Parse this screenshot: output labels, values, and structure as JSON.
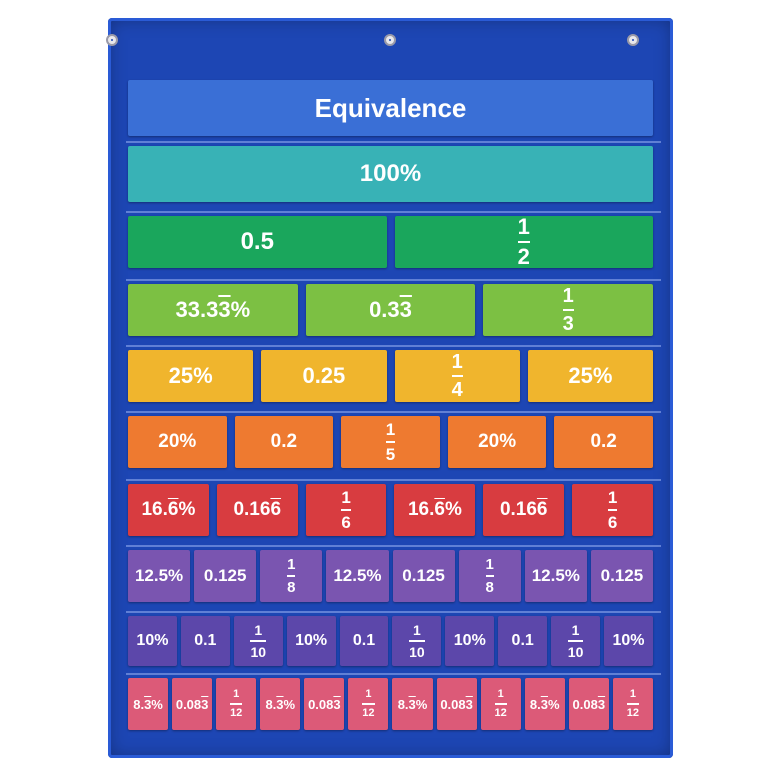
{
  "colors": {
    "background": "#1d46b4",
    "row_colors": [
      "#3a6fd6",
      "#38b2b6",
      "#1aa65c",
      "#7cc043",
      "#f0b52d",
      "#ee7a30",
      "#d83c40",
      "#7a55b0",
      "#5c47aa",
      "#dc5a78"
    ]
  },
  "chart": {
    "title": "Equivalence",
    "rows": [
      {
        "color": "#38b2b6",
        "cards": [
          {
            "kind": "text",
            "text": "100%"
          }
        ]
      },
      {
        "color": "#1aa65c",
        "cards": [
          {
            "kind": "text",
            "text": "0.5"
          },
          {
            "kind": "frac",
            "num": "1",
            "den": "2"
          }
        ]
      },
      {
        "color": "#7cc043",
        "cards": [
          {
            "kind": "text",
            "text": "33.3",
            "over": "3",
            "suffix": "%"
          },
          {
            "kind": "text",
            "text": "0.3",
            "over": "3",
            "suffix": ""
          },
          {
            "kind": "frac",
            "num": "1",
            "den": "3"
          }
        ]
      },
      {
        "color": "#f0b52d",
        "cards": [
          {
            "kind": "text",
            "text": "25%"
          },
          {
            "kind": "text",
            "text": "0.25"
          },
          {
            "kind": "frac",
            "num": "1",
            "den": "4"
          },
          {
            "kind": "text",
            "text": "25%"
          }
        ]
      },
      {
        "color": "#ee7a30",
        "cards": [
          {
            "kind": "text",
            "text": "20%"
          },
          {
            "kind": "text",
            "text": "0.2"
          },
          {
            "kind": "frac",
            "num": "1",
            "den": "5"
          },
          {
            "kind": "text",
            "text": "20%"
          },
          {
            "kind": "text",
            "text": "0.2"
          }
        ]
      },
      {
        "color": "#d83c40",
        "cards": [
          {
            "kind": "text",
            "text": "16.",
            "over": "6",
            "suffix": "%"
          },
          {
            "kind": "text",
            "text": "0.16",
            "over": "6",
            "suffix": ""
          },
          {
            "kind": "frac",
            "num": "1",
            "den": "6"
          },
          {
            "kind": "text",
            "text": "16.",
            "over": "6",
            "suffix": "%"
          },
          {
            "kind": "text",
            "text": "0.16",
            "over": "6",
            "suffix": ""
          },
          {
            "kind": "frac",
            "num": "1",
            "den": "6"
          }
        ]
      },
      {
        "color": "#7a55b0",
        "cards": [
          {
            "kind": "text",
            "text": "12.5%"
          },
          {
            "kind": "text",
            "text": "0.125"
          },
          {
            "kind": "frac",
            "num": "1",
            "den": "8"
          },
          {
            "kind": "text",
            "text": "12.5%"
          },
          {
            "kind": "text",
            "text": "0.125"
          },
          {
            "kind": "frac",
            "num": "1",
            "den": "8"
          },
          {
            "kind": "text",
            "text": "12.5%"
          },
          {
            "kind": "text",
            "text": "0.125"
          }
        ]
      },
      {
        "color": "#5c47aa",
        "cards": [
          {
            "kind": "text",
            "text": "10%"
          },
          {
            "kind": "text",
            "text": "0.1"
          },
          {
            "kind": "frac",
            "num": "1",
            "den": "10"
          },
          {
            "kind": "text",
            "text": "10%"
          },
          {
            "kind": "text",
            "text": "0.1"
          },
          {
            "kind": "frac",
            "num": "1",
            "den": "10"
          },
          {
            "kind": "text",
            "text": "10%"
          },
          {
            "kind": "text",
            "text": "0.1"
          },
          {
            "kind": "frac",
            "num": "1",
            "den": "10"
          },
          {
            "kind": "text",
            "text": "10%"
          }
        ]
      },
      {
        "color": "#dc5a78",
        "cards": [
          {
            "kind": "text",
            "text": "8.",
            "over": "3",
            "suffix": "%"
          },
          {
            "kind": "text",
            "text": "0.08",
            "over": "3",
            "suffix": ""
          },
          {
            "kind": "frac",
            "num": "1",
            "den": "12"
          },
          {
            "kind": "text",
            "text": "8.",
            "over": "3",
            "suffix": "%"
          },
          {
            "kind": "text",
            "text": "0.08",
            "over": "3",
            "suffix": ""
          },
          {
            "kind": "frac",
            "num": "1",
            "den": "12"
          },
          {
            "kind": "text",
            "text": "8.",
            "over": "3",
            "suffix": "%"
          },
          {
            "kind": "text",
            "text": "0.08",
            "over": "3",
            "suffix": ""
          },
          {
            "kind": "frac",
            "num": "1",
            "den": "12"
          },
          {
            "kind": "text",
            "text": "8.",
            "over": "3",
            "suffix": "%"
          },
          {
            "kind": "text",
            "text": "0.08",
            "over": "3",
            "suffix": ""
          },
          {
            "kind": "frac",
            "num": "1",
            "den": "12"
          }
        ]
      }
    ]
  }
}
